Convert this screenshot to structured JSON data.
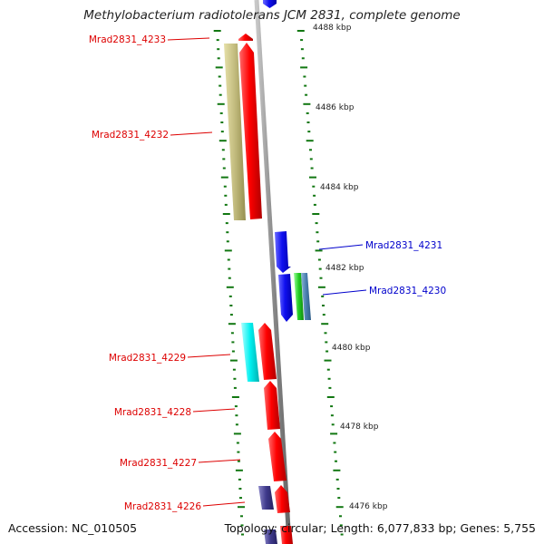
{
  "title": "Methylobacterium radiotolerans JCM 2831, complete genome",
  "footer": {
    "accession": "Accession: NC_010505",
    "topology": "Topology: circular; Length: 6,077,833 bp; Genes: 5,755"
  },
  "colors": {
    "forward_label": "#dd0000",
    "reverse_label": "#0000cc",
    "backbone": "#8a8a8a",
    "tick": "#117711"
  },
  "ticks": [
    "4488 kbp",
    "4486 kbp",
    "4484 kbp",
    "4482 kbp",
    "4480 kbp",
    "4478 kbp",
    "4476 kbp"
  ],
  "genes": [
    {
      "id": "Mrad2831_4233",
      "strand": "forward"
    },
    {
      "id": "Mrad2831_4232",
      "strand": "forward"
    },
    {
      "id": "Mrad2831_4231",
      "strand": "reverse"
    },
    {
      "id": "Mrad2831_4230",
      "strand": "reverse"
    },
    {
      "id": "Mrad2831_4229",
      "strand": "forward"
    },
    {
      "id": "Mrad2831_4228",
      "strand": "forward"
    },
    {
      "id": "Mrad2831_4227",
      "strand": "forward"
    },
    {
      "id": "Mrad2831_4226",
      "strand": "forward"
    }
  ]
}
